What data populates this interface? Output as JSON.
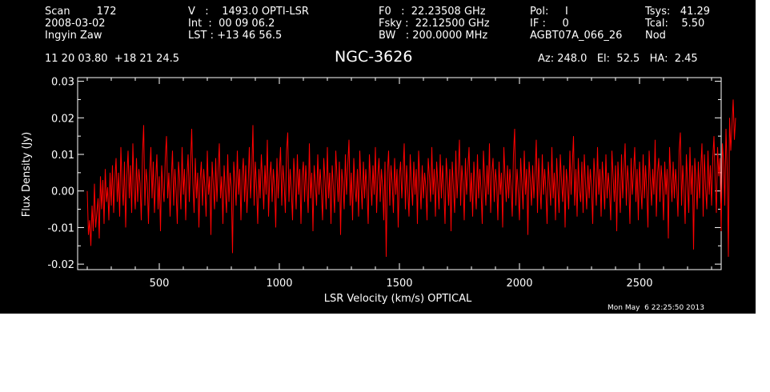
{
  "header": {
    "col1": [
      "Scan        172",
      "2008-03-02",
      "Ingyin Zaw"
    ],
    "col2": [
      "V   :    1493.0 OPTI-LSR",
      "Int  :  00 09 06.2",
      "LST : +13 46 56.5"
    ],
    "col3": [
      "F0   :  22.23508 GHz",
      "Fsky :  22.12500 GHz",
      "BW   : 200.0000 MHz"
    ],
    "col4": [
      "Pol:     I",
      "IF :     0",
      "AGBT07A_066_26"
    ],
    "col5": [
      "Tsys:   41.29",
      "Tcal:    5.50",
      "Nod"
    ],
    "coords": "11 20 03.80  +18 21 24.5",
    "source": "NGC-3626",
    "pointing": "Az: 248.0   El:  52.5   HA:  2.45",
    "timestamp": "Mon May  6 22:25:50 2013"
  },
  "colors": {
    "background": "#000000",
    "foreground": "#ffffff",
    "trace": "#ff0000"
  },
  "chart_data": {
    "type": "line",
    "title": "NGC-3626",
    "xlabel": "LSR Velocity (km/s) OPTICAL",
    "ylabel": "Flux Density (Jy)",
    "xlim": [
      160,
      2840
    ],
    "ylim": [
      -0.0215,
      0.031
    ],
    "xticks": [
      500,
      1000,
      1500,
      2000,
      2500
    ],
    "xtick_labels": [
      "500",
      "1000",
      "1500",
      "2000",
      "2500"
    ],
    "yticks": [
      -0.02,
      -0.01,
      0.0,
      0.01,
      0.02,
      0.03
    ],
    "ytick_labels": [
      "-0.02",
      "-0.01",
      "0.00",
      "0.01",
      "0.02",
      "0.03"
    ],
    "grid": false,
    "series": [
      {
        "x_start": 200,
        "x_step": 5,
        "values": [
          0.0,
          -0.012,
          -0.008,
          -0.015,
          -0.004,
          -0.011,
          0.002,
          -0.01,
          -0.006,
          -0.002,
          -0.013,
          0.004,
          -0.005,
          0.003,
          -0.009,
          0.006,
          -0.003,
          0.001,
          -0.008,
          0.005,
          -0.004,
          0.007,
          -0.006,
          0.003,
          0.009,
          -0.003,
          0.005,
          -0.007,
          0.012,
          0.002,
          -0.004,
          0.008,
          -0.01,
          0.004,
          0.011,
          -0.002,
          0.007,
          -0.006,
          0.013,
          0.001,
          -0.005,
          0.009,
          -0.003,
          0.006,
          0.002,
          -0.008,
          0.01,
          0.018,
          -0.004,
          0.006,
          0.002,
          -0.009,
          0.005,
          0.012,
          -0.002,
          0.008,
          -0.006,
          0.003,
          0.01,
          -0.005,
          0.004,
          -0.011,
          0.007,
          0.001,
          -0.003,
          0.009,
          0.015,
          -0.002,
          0.005,
          -0.007,
          0.003,
          0.011,
          -0.004,
          0.006,
          0.0,
          -0.009,
          0.008,
          0.003,
          -0.005,
          0.012,
          -0.001,
          0.006,
          -0.008,
          0.004,
          0.01,
          -0.003,
          0.007,
          0.017,
          0.002,
          -0.006,
          0.009,
          -0.002,
          0.005,
          -0.01,
          0.003,
          0.008,
          -0.004,
          0.006,
          0.001,
          -0.007,
          0.011,
          -0.001,
          0.004,
          -0.012,
          0.008,
          0.002,
          -0.005,
          0.009,
          -0.003,
          0.006,
          0.013,
          -0.002,
          0.004,
          -0.009,
          0.007,
          0.0,
          -0.006,
          0.01,
          -0.003,
          0.005,
          0.001,
          -0.017,
          0.008,
          0.003,
          -0.004,
          0.011,
          -0.001,
          0.006,
          -0.008,
          0.004,
          0.009,
          -0.003,
          0.007,
          -0.006,
          0.002,
          0.012,
          -0.002,
          0.005,
          0.018,
          -0.004,
          0.008,
          0.001,
          -0.009,
          0.006,
          -0.002,
          0.01,
          0.003,
          -0.005,
          0.007,
          -0.001,
          0.014,
          -0.007,
          0.004,
          0.008,
          -0.003,
          0.006,
          0.001,
          -0.01,
          0.009,
          -0.002,
          0.005,
          0.012,
          -0.004,
          0.007,
          0.002,
          -0.006,
          0.011,
          0.016,
          -0.003,
          0.006,
          0.0,
          -0.008,
          0.009,
          0.003,
          -0.005,
          0.01,
          -0.001,
          0.006,
          -0.009,
          0.004,
          0.008,
          -0.003,
          0.007,
          0.001,
          -0.006,
          0.013,
          -0.002,
          0.005,
          -0.011,
          0.007,
          0.002,
          -0.004,
          0.01,
          -0.001,
          0.006,
          0.0,
          -0.008,
          0.009,
          0.003,
          -0.005,
          0.012,
          -0.002,
          0.005,
          -0.009,
          0.007,
          0.001,
          -0.006,
          0.011,
          0.004,
          -0.003,
          0.008,
          -0.012,
          0.006,
          0.002,
          -0.005,
          0.01,
          -0.001,
          0.007,
          0.014,
          -0.004,
          0.005,
          -0.008,
          0.009,
          0.001,
          -0.003,
          0.006,
          -0.007,
          0.011,
          0.002,
          -0.005,
          0.008,
          -0.002,
          0.006,
          0.0,
          -0.009,
          0.01,
          0.003,
          -0.004,
          0.007,
          -0.001,
          0.012,
          -0.006,
          0.004,
          0.009,
          -0.003,
          0.006,
          0.001,
          -0.008,
          0.008,
          -0.018,
          0.005,
          0.011,
          -0.004,
          0.007,
          0.002,
          -0.006,
          0.009,
          -0.001,
          0.006,
          -0.01,
          0.004,
          0.008,
          -0.002,
          0.005,
          0.013,
          -0.005,
          0.007,
          0.0,
          -0.007,
          0.01,
          0.002,
          -0.004,
          0.008,
          -0.001,
          0.006,
          -0.009,
          0.011,
          0.003,
          -0.005,
          0.007,
          -0.002,
          0.005,
          0.001,
          -0.008,
          0.009,
          0.004,
          -0.003,
          0.012,
          -0.001,
          0.006,
          -0.007,
          0.008,
          0.002,
          -0.005,
          0.01,
          -0.002,
          0.007,
          0.0,
          -0.009,
          0.009,
          0.003,
          -0.004,
          0.006,
          -0.011,
          0.008,
          0.001,
          -0.006,
          0.011,
          -0.002,
          0.005,
          0.014,
          -0.004,
          0.007,
          0.002,
          -0.008,
          0.009,
          -0.001,
          0.006,
          0.012,
          -0.003,
          0.005,
          -0.007,
          0.008,
          0.001,
          -0.005,
          0.01,
          -0.002,
          0.006,
          0.0,
          -0.009,
          0.011,
          0.003,
          -0.004,
          0.007,
          -0.001,
          0.013,
          -0.006,
          0.005,
          0.009,
          -0.003,
          0.006,
          0.002,
          -0.008,
          0.008,
          -0.001,
          0.005,
          -0.01,
          0.012,
          0.004,
          -0.003,
          0.007,
          -0.002,
          0.006,
          0.001,
          -0.007,
          0.01,
          0.017,
          -0.004,
          0.006,
          0.0,
          -0.008,
          0.009,
          0.002,
          -0.005,
          0.011,
          -0.001,
          0.006,
          -0.012,
          0.008,
          0.003,
          -0.004,
          0.007,
          -0.002,
          0.005,
          0.014,
          -0.006,
          0.009,
          0.001,
          -0.005,
          0.01,
          -0.001,
          0.006,
          0.0,
          -0.009,
          0.008,
          0.002,
          -0.004,
          0.012,
          -0.002,
          0.005,
          -0.008,
          0.009,
          0.001,
          -0.006,
          0.01,
          0.003,
          -0.003,
          0.007,
          -0.01,
          0.006,
          0.002,
          -0.005,
          0.011,
          -0.001,
          0.007,
          0.015,
          -0.004,
          0.006,
          -0.007,
          0.009,
          0.0,
          -0.003,
          0.008,
          -0.006,
          0.01,
          0.002,
          -0.005,
          0.007,
          -0.002,
          0.006,
          0.001,
          -0.009,
          0.009,
          0.003,
          -0.004,
          0.012,
          -0.001,
          0.006,
          -0.007,
          0.008,
          0.002,
          -0.005,
          0.01,
          -0.002,
          0.005,
          0.0,
          -0.008,
          0.011,
          0.004,
          -0.003,
          0.007,
          -0.011,
          0.008,
          0.001,
          -0.006,
          0.01,
          -0.002,
          0.006,
          0.013,
          -0.004,
          0.007,
          0.002,
          -0.009,
          0.009,
          -0.001,
          0.005,
          0.012,
          -0.003,
          0.006,
          -0.008,
          0.008,
          0.001,
          -0.005,
          0.01,
          -0.002,
          0.007,
          0.0,
          -0.01,
          0.011,
          0.003,
          -0.004,
          0.006,
          -0.001,
          0.014,
          -0.007,
          0.005,
          0.009,
          -0.003,
          0.007,
          0.002,
          -0.008,
          0.008,
          -0.001,
          0.006,
          -0.013,
          0.012,
          0.004,
          -0.003,
          0.008,
          -0.002,
          0.006,
          0.001,
          -0.007,
          0.011,
          0.016,
          -0.004,
          0.007,
          0.0,
          -0.009,
          0.01,
          0.002,
          -0.006,
          0.012,
          -0.001,
          0.007,
          -0.016,
          0.009,
          0.003,
          -0.005,
          0.008,
          -0.002,
          0.006,
          0.013,
          -0.007,
          0.01,
          0.001,
          -0.005,
          0.011,
          -0.001,
          0.007,
          -0.004,
          0.009,
          0.015,
          0.003,
          -0.006,
          0.012,
          0.004,
          0.009,
          -0.011,
          0.013,
          0.008,
          -0.004,
          0.017,
          0.006,
          -0.018,
          0.02,
          0.011,
          0.018,
          0.025,
          0.014,
          0.02
        ]
      }
    ]
  }
}
